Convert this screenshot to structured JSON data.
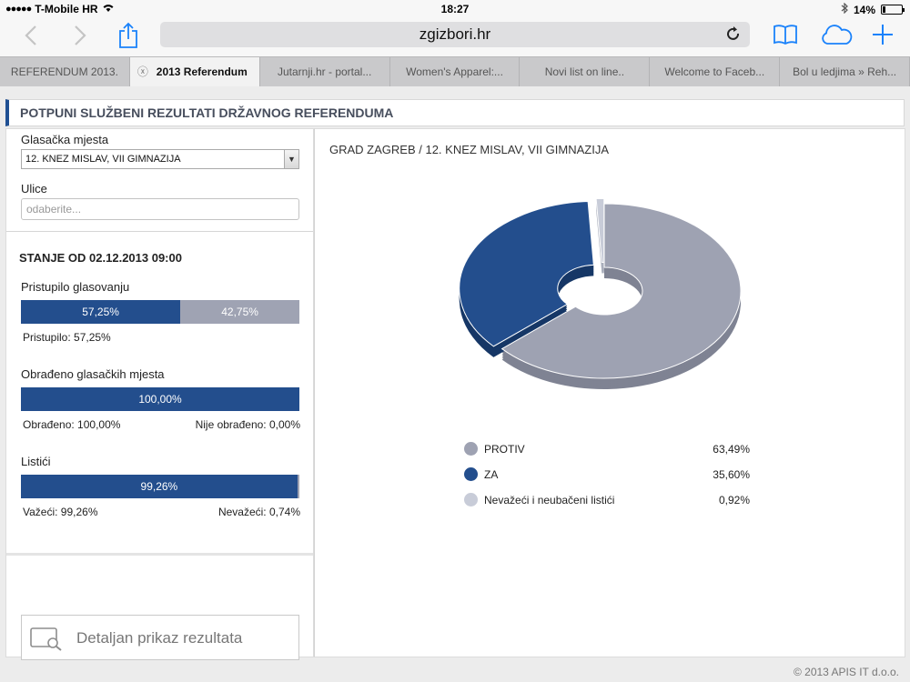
{
  "status": {
    "carrier": "T-Mobile HR",
    "time": "18:27",
    "battery": "14%"
  },
  "browser": {
    "url": "zgizbori.hr",
    "tabs": [
      {
        "label": "REFERENDUM 2013."
      },
      {
        "label": "2013 Referendum"
      },
      {
        "label": "Jutarnji.hr - portal..."
      },
      {
        "label": "Women's Apparel:..."
      },
      {
        "label": "Novi list on line.."
      },
      {
        "label": "Welcome to Faceb..."
      },
      {
        "label": "Bol u ledjima » Reh..."
      }
    ]
  },
  "page": {
    "title": "POTPUNI SLUŽBENI REZULTATI DRŽAVNOG REFERENDUMA",
    "filters": {
      "polling_label": "Glasačka mjesta",
      "polling_value": "12. KNEZ MISLAV, VII GIMNAZIJA",
      "streets_label": "Ulice",
      "streets_placeholder": "odaberite..."
    },
    "stanje": "STANJE OD 02.12.2013 09:00",
    "turnout": {
      "label": "Pristupilo glasovanju",
      "fill_pct": 57.25,
      "fill_text": "57,25%",
      "rest_text": "42,75%",
      "note": "Pristupilo: 57,25%"
    },
    "processed": {
      "label": "Obrađeno glasačkih mjesta",
      "fill_pct": 100,
      "fill_text": "100,00%",
      "note_left": "Obrađeno: 100,00%",
      "note_right": "Nije obrađeno: 0,00%"
    },
    "ballots": {
      "label": "Listići",
      "fill_pct": 99.26,
      "fill_text": "99,26%",
      "note_left": "Važeći: 99,26%",
      "note_right": "Nevažeći: 0,74%"
    },
    "detail_button": "Detaljan prikaz rezultata",
    "breadcrumb": "GRAD ZAGREB   / 12. KNEZ MISLAV, VII GIMNAZIJA",
    "footer": "© 2013 APIS IT d.o.o."
  },
  "chart_data": {
    "type": "pie",
    "categories": [
      "PROTIV",
      "ZA",
      "Nevažeći i neubačeni listići"
    ],
    "values": [
      63.49,
      35.6,
      0.92
    ],
    "value_labels": [
      "63,49%",
      "35,60%",
      "0,92%"
    ],
    "colors": [
      "#9ea2b2",
      "#234e8d",
      "#c8ccd8"
    ],
    "legend": "bottom"
  }
}
